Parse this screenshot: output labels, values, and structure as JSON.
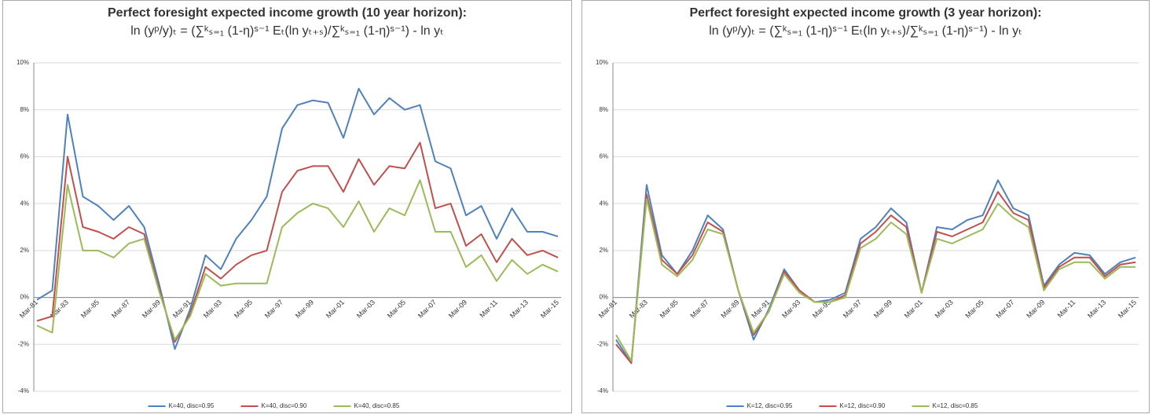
{
  "chart_data": [
    {
      "type": "line",
      "title": "Perfect foresight expected income growth (10 year horizon):",
      "subtitle": "ln (yᵖ/y)ₜ = (∑ᵏₛ₌₁ (1-η)ˢ⁻¹ Eₜ(ln yₜ₊ₛ)/∑ᵏₛ₌₁ (1-η)ˢ⁻¹) - ln yₜ",
      "categories": [
        "Mar-81",
        null,
        "Mar-83",
        null,
        "Mar-85",
        null,
        "Mar-87",
        null,
        "Mar-89",
        null,
        "Mar-91",
        null,
        "Mar-93",
        null,
        "Mar-95",
        null,
        "Mar-97",
        null,
        "Mar-99",
        null,
        "Mar-01",
        null,
        "Mar-03",
        null,
        "Mar-05",
        null,
        "Mar-07",
        null,
        "Mar-09",
        null,
        "Mar-11",
        null,
        "Mar-13",
        null,
        "Mar-15"
      ],
      "series": [
        {
          "name": "K=40, disc=0.95",
          "color": "#4f81bd",
          "values": [
            -0.1,
            0.3,
            7.8,
            4.3,
            3.9,
            3.3,
            3.9,
            3.0,
            0.5,
            -2.2,
            -0.5,
            1.8,
            1.2,
            2.5,
            3.3,
            4.3,
            7.2,
            8.2,
            8.4,
            8.3,
            6.8,
            8.9,
            7.8,
            8.5,
            8.0,
            8.2,
            5.8,
            5.5,
            3.5,
            3.9,
            2.5,
            3.8,
            2.8,
            2.8,
            2.6
          ]
        },
        {
          "name": "K=40, disc=0.90",
          "color": "#c0504d",
          "values": [
            -1.0,
            -0.8,
            6.0,
            3.0,
            2.8,
            2.5,
            3.0,
            2.7,
            0.3,
            -1.9,
            -0.7,
            1.3,
            0.8,
            1.4,
            1.8,
            2.0,
            4.5,
            5.4,
            5.6,
            5.6,
            4.5,
            5.9,
            4.8,
            5.6,
            5.5,
            6.6,
            3.8,
            4.0,
            2.2,
            2.7,
            1.5,
            2.5,
            1.8,
            2.0,
            1.7
          ]
        },
        {
          "name": "K=40, disc=0.85",
          "color": "#9bbb59",
          "values": [
            -1.2,
            -1.5,
            4.8,
            2.0,
            2.0,
            1.7,
            2.3,
            2.5,
            0.2,
            -1.8,
            -0.8,
            1.0,
            0.5,
            0.6,
            0.6,
            0.6,
            3.0,
            3.6,
            4.0,
            3.8,
            3.0,
            4.1,
            2.8,
            3.8,
            3.5,
            5.0,
            2.8,
            2.8,
            1.3,
            1.8,
            0.7,
            1.6,
            1.0,
            1.4,
            1.1
          ]
        }
      ],
      "ylim": [
        -4,
        10
      ],
      "yticks": [
        {
          "value": -4,
          "label": "-4%"
        },
        {
          "value": -2,
          "label": "-2%"
        },
        {
          "value": 0,
          "label": "0%"
        },
        {
          "value": 2,
          "label": "2%"
        },
        {
          "value": 4,
          "label": "4%"
        },
        {
          "value": 6,
          "label": "6%"
        },
        {
          "value": 8,
          "label": "8%"
        },
        {
          "value": 10,
          "label": "10%"
        }
      ],
      "grid": true,
      "legend": "bottom"
    },
    {
      "type": "line",
      "title": "Perfect foresight expected income growth (3 year horizon):",
      "subtitle": "ln (yᵖ/y)ₜ = (∑ᵏₛ₌₁ (1-η)ˢ⁻¹ Eₜ(ln yₜ₊ₛ)/∑ᵏₛ₌₁ (1-η)ˢ⁻¹) - ln yₜ",
      "categories": [
        "Mar-81",
        null,
        "Mar-83",
        null,
        "Mar-85",
        null,
        "Mar-87",
        null,
        "Mar-89",
        null,
        "Mar-91",
        null,
        "Mar-93",
        null,
        "Mar-95",
        null,
        "Mar-97",
        null,
        "Mar-99",
        null,
        "Mar-01",
        null,
        "Mar-03",
        null,
        "Mar-05",
        null,
        "Mar-07",
        null,
        "Mar-09",
        null,
        "Mar-11",
        null,
        "Mar-13",
        null,
        "Mar-15"
      ],
      "series": [
        {
          "name": "K=12, disc=0.95",
          "color": "#4f81bd",
          "values": [
            -1.8,
            -2.8,
            4.8,
            1.8,
            1.0,
            2.0,
            3.5,
            2.9,
            0.3,
            -1.8,
            -0.5,
            1.2,
            0.3,
            -0.2,
            -0.1,
            0.2,
            2.5,
            3.0,
            3.8,
            3.2,
            0.2,
            3.0,
            2.9,
            3.3,
            3.5,
            5.0,
            3.8,
            3.5,
            0.5,
            1.4,
            1.9,
            1.8,
            1.0,
            1.5,
            1.7
          ]
        },
        {
          "name": "K=12, disc=0.90",
          "color": "#c0504d",
          "values": [
            -2.0,
            -2.8,
            4.4,
            1.6,
            1.0,
            1.8,
            3.2,
            2.8,
            0.3,
            -1.6,
            -0.6,
            1.1,
            0.3,
            -0.2,
            -0.2,
            0.1,
            2.3,
            2.8,
            3.5,
            3.0,
            0.2,
            2.8,
            2.6,
            2.9,
            3.2,
            4.5,
            3.6,
            3.3,
            0.4,
            1.3,
            1.7,
            1.7,
            0.9,
            1.4,
            1.5
          ]
        },
        {
          "name": "K=12, disc=0.85",
          "color": "#9bbb59",
          "values": [
            -1.6,
            -2.7,
            4.2,
            1.4,
            0.9,
            1.6,
            2.9,
            2.7,
            0.3,
            -1.5,
            -0.6,
            1.0,
            0.2,
            -0.2,
            -0.2,
            0.0,
            2.1,
            2.5,
            3.2,
            2.7,
            0.2,
            2.5,
            2.3,
            2.6,
            2.9,
            4.0,
            3.4,
            3.0,
            0.3,
            1.2,
            1.5,
            1.5,
            0.8,
            1.3,
            1.3
          ]
        }
      ],
      "ylim": [
        -4,
        10
      ],
      "yticks": [
        {
          "value": -4,
          "label": "-4%"
        },
        {
          "value": -2,
          "label": "-2%"
        },
        {
          "value": 0,
          "label": "0%"
        },
        {
          "value": 2,
          "label": "2%"
        },
        {
          "value": 4,
          "label": "4%"
        },
        {
          "value": 6,
          "label": "6%"
        },
        {
          "value": 8,
          "label": "8%"
        },
        {
          "value": 10,
          "label": "10%"
        }
      ],
      "grid": true,
      "legend": "bottom"
    }
  ]
}
